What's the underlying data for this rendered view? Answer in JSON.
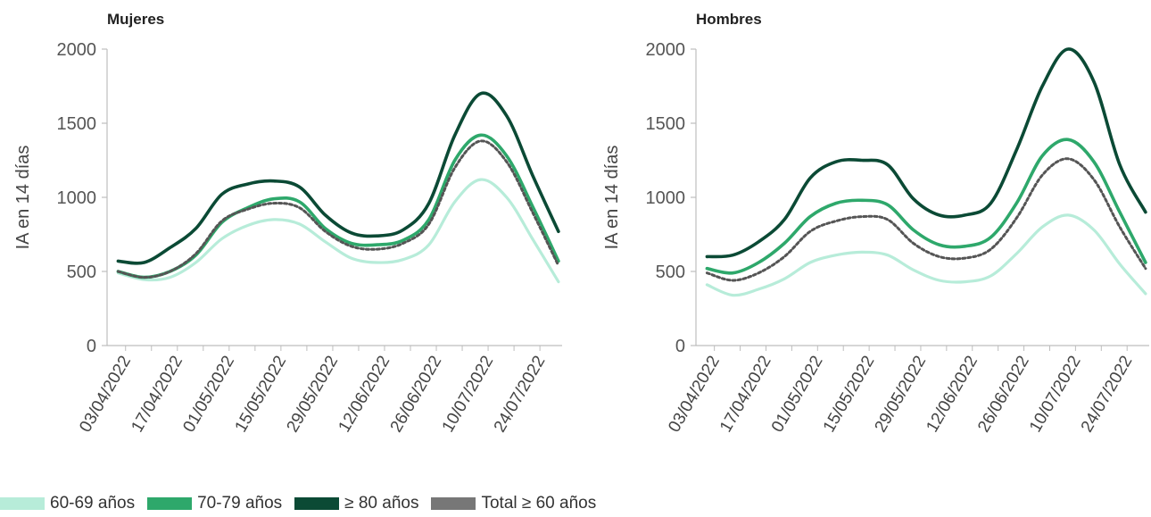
{
  "chart_data": [
    {
      "type": "line",
      "title": "Mujeres",
      "ylabel": "IA en 14 días",
      "xlabel": "",
      "ylim": [
        0,
        2000
      ],
      "yticks": [
        0,
        500,
        1000,
        1500,
        2000
      ],
      "xticks": [
        "03/04/2022",
        "17/04/2022",
        "01/05/2022",
        "15/05/2022",
        "29/05/2022",
        "12/06/2022",
        "26/06/2022",
        "10/07/2022",
        "24/07/2022"
      ],
      "x": [
        "01/04/2022",
        "08/04/2022",
        "15/04/2022",
        "22/04/2022",
        "29/04/2022",
        "06/05/2022",
        "13/05/2022",
        "20/05/2022",
        "27/05/2022",
        "03/06/2022",
        "10/06/2022",
        "17/06/2022",
        "24/06/2022",
        "01/07/2022",
        "08/07/2022",
        "15/07/2022",
        "22/07/2022",
        "29/07/2022"
      ],
      "series": [
        {
          "name": "60-69 años",
          "values": [
            490,
            445,
            460,
            560,
            720,
            810,
            850,
            820,
            700,
            590,
            560,
            580,
            680,
            970,
            1120,
            1000,
            720,
            430
          ]
        },
        {
          "name": "70-79 años",
          "values": [
            500,
            460,
            500,
            610,
            830,
            930,
            990,
            970,
            790,
            690,
            680,
            710,
            850,
            1250,
            1420,
            1280,
            940,
            570
          ]
        },
        {
          "name": "≥ 80 años",
          "values": [
            570,
            560,
            660,
            790,
            1020,
            1090,
            1110,
            1070,
            880,
            760,
            740,
            780,
            960,
            1420,
            1700,
            1550,
            1150,
            770
          ]
        },
        {
          "name": "Total ≥ 60 años",
          "values": [
            500,
            460,
            500,
            620,
            840,
            920,
            960,
            930,
            770,
            670,
            650,
            690,
            820,
            1200,
            1380,
            1240,
            900,
            540
          ]
        }
      ]
    },
    {
      "type": "line",
      "title": "Hombres",
      "ylabel": "IA en 14 días",
      "xlabel": "",
      "ylim": [
        0,
        2000
      ],
      "yticks": [
        0,
        500,
        1000,
        1500,
        2000
      ],
      "xticks": [
        "03/04/2022",
        "17/04/2022",
        "01/05/2022",
        "15/05/2022",
        "29/05/2022",
        "12/06/2022",
        "26/06/2022",
        "10/07/2022",
        "24/07/2022"
      ],
      "x": [
        "01/04/2022",
        "08/04/2022",
        "15/04/2022",
        "22/04/2022",
        "29/04/2022",
        "06/05/2022",
        "13/05/2022",
        "20/05/2022",
        "27/05/2022",
        "03/06/2022",
        "10/06/2022",
        "17/06/2022",
        "24/06/2022",
        "01/07/2022",
        "08/07/2022",
        "15/07/2022",
        "22/07/2022",
        "29/07/2022"
      ],
      "series": [
        {
          "name": "60-69 años",
          "values": [
            410,
            340,
            380,
            450,
            560,
            610,
            630,
            610,
            510,
            440,
            430,
            470,
            620,
            800,
            880,
            780,
            550,
            350
          ]
        },
        {
          "name": "70-79 años",
          "values": [
            520,
            490,
            560,
            690,
            870,
            960,
            980,
            950,
            780,
            680,
            670,
            730,
            960,
            1280,
            1390,
            1240,
            900,
            560
          ]
        },
        {
          "name": "≥ 80 años",
          "values": [
            600,
            610,
            700,
            850,
            1130,
            1240,
            1250,
            1220,
            990,
            880,
            880,
            960,
            1320,
            1750,
            2000,
            1780,
            1220,
            900
          ]
        },
        {
          "name": "Total ≥ 60 años",
          "values": [
            490,
            440,
            490,
            600,
            770,
            840,
            870,
            850,
            690,
            600,
            590,
            650,
            860,
            1150,
            1260,
            1120,
            800,
            520
          ]
        }
      ]
    }
  ],
  "legend": [
    {
      "label": "60-69 años",
      "color": "#b7ecd9"
    },
    {
      "label": "70-79 años",
      "color": "#2ea86b"
    },
    {
      "label": "≥ 80 años",
      "color": "#0b4a35"
    },
    {
      "label": "Total ≥ 60 años",
      "color": "#777777"
    }
  ]
}
